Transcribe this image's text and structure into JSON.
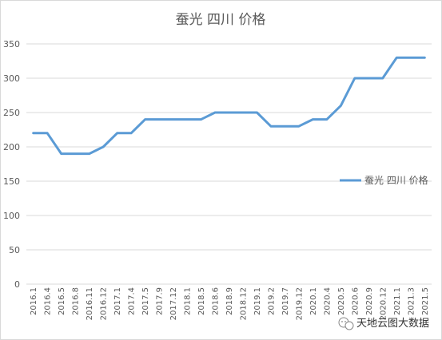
{
  "chart_data": {
    "type": "line",
    "title": "蚕光 四川 价格",
    "xlabel": "",
    "ylabel": "",
    "ylim": [
      0,
      350
    ],
    "yticks": [
      0,
      50,
      100,
      150,
      200,
      250,
      300,
      350
    ],
    "grid": true,
    "legend_position": "right",
    "categories": [
      "2016.1",
      "2016.4",
      "2016.5",
      "2016.8",
      "2016.11",
      "2016.12",
      "2017.1",
      "2017.4",
      "2017.5",
      "2017.9",
      "2017.12",
      "2018.1",
      "2018.5",
      "2018.6",
      "2018.9",
      "2018.12",
      "2019.1",
      "2019.2",
      "2019.7",
      "2019.12",
      "2020.1",
      "2020.4",
      "2020.5",
      "2020.6",
      "2020.9",
      "2020.12",
      "2021.1",
      "2021.3",
      "2021.5"
    ],
    "series": [
      {
        "name": "蚕光 四川 价格",
        "color": "#5b9bd5",
        "values": [
          220,
          220,
          190,
          190,
          190,
          200,
          220,
          220,
          240,
          240,
          240,
          240,
          240,
          250,
          250,
          250,
          250,
          230,
          230,
          230,
          240,
          240,
          260,
          300,
          300,
          300,
          330,
          330,
          330
        ]
      }
    ]
  },
  "watermark": {
    "text": "天地云图大数据",
    "icon": "wechat-icon"
  }
}
